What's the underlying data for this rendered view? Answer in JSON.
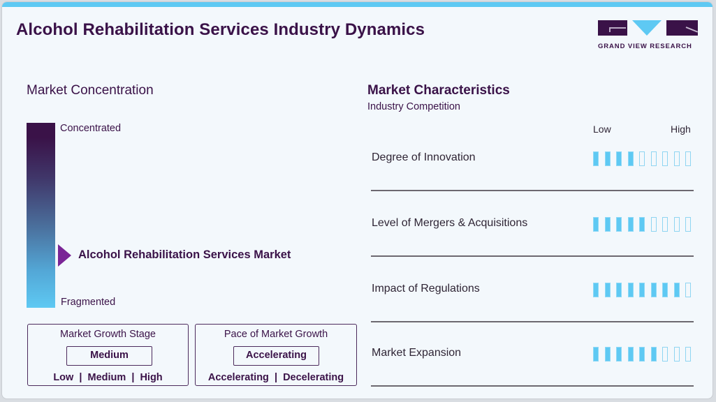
{
  "header": {
    "title": "Alcohol Rehabilitation Services Industry Dynamics",
    "logo_text": "GRAND VIEW RESEARCH"
  },
  "colors": {
    "accent_blue": "#5ec9f3",
    "brand_purple": "#3a1248",
    "marker_purple": "#7a2596",
    "background": "#f3f8fc"
  },
  "concentration": {
    "title": "Market Concentration",
    "top_label": "Concentrated",
    "bottom_label": "Fragmented",
    "marker_label": "Alcohol Rehabilitation Services Market",
    "marker_position_pct": 71
  },
  "growth_stage": {
    "title": "Market Growth Stage",
    "value": "Medium",
    "options": "Low  |  Medium  |  High"
  },
  "growth_pace": {
    "title": "Pace of Market Growth",
    "value": "Accelerating",
    "options": "Accelerating  |  Decelerating"
  },
  "characteristics": {
    "title": "Market Characteristics",
    "subtitle": "Industry Competition",
    "scale_low": "Low",
    "scale_high": "High",
    "max_level": 9,
    "items": [
      {
        "label": "Degree of Innovation",
        "level": 4
      },
      {
        "label": "Level of Mergers & Acquisitions",
        "level": 5
      },
      {
        "label": "Impact of Regulations",
        "level": 8
      },
      {
        "label": "Market Expansion",
        "level": 6
      }
    ]
  }
}
